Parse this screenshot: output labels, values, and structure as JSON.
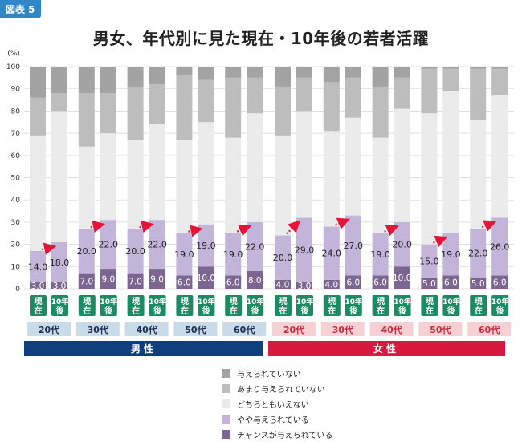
{
  "figure_label": "図表 5",
  "title": "男女、年代別に見た現在・10年後の若者活躍",
  "chart_data": {
    "type": "bar",
    "stacked": true,
    "title": "男女、年代別に見た現在・10年後の若者活躍",
    "ylabel": "(%)",
    "ylim": [
      0,
      100
    ],
    "yticks": [
      0,
      10,
      20,
      30,
      40,
      50,
      60,
      70,
      80,
      90,
      100
    ],
    "time_labels": [
      "現在",
      "10年後"
    ],
    "groups": [
      {
        "gender": "男性",
        "age": "20代"
      },
      {
        "gender": "男性",
        "age": "30代"
      },
      {
        "gender": "男性",
        "age": "40代"
      },
      {
        "gender": "男性",
        "age": "50代"
      },
      {
        "gender": "男性",
        "age": "60代"
      },
      {
        "gender": "女性",
        "age": "20代"
      },
      {
        "gender": "女性",
        "age": "30代"
      },
      {
        "gender": "女性",
        "age": "40代"
      },
      {
        "gender": "女性",
        "age": "50代"
      },
      {
        "gender": "女性",
        "age": "60代"
      }
    ],
    "gender_labels": [
      "男性",
      "女性"
    ],
    "series": [
      {
        "name": "チャンスが与えられている",
        "color": "#7a6691",
        "values": [
          3,
          3,
          7,
          9,
          7,
          9,
          6,
          10,
          6,
          8,
          4,
          3,
          4,
          6,
          6,
          10,
          5,
          6,
          5,
          6
        ]
      },
      {
        "name": "やや与えられている",
        "color": "#c3b5da",
        "values": [
          14,
          18,
          20,
          22,
          20,
          22,
          19,
          19,
          19,
          22,
          20,
          29,
          24,
          27,
          19,
          20,
          15,
          19,
          22,
          26
        ]
      },
      {
        "name": "どちらともいえない",
        "color": "#ebebeb",
        "values": [
          52,
          59,
          37,
          39,
          40,
          43,
          42,
          46,
          43,
          49,
          45,
          48,
          43,
          44,
          43,
          51,
          59,
          64,
          49,
          55
        ]
      },
      {
        "name": "あまり与えられていない",
        "color": "#bdbdbd",
        "values": [
          17,
          8,
          24,
          18,
          24,
          18,
          29,
          19,
          27,
          16,
          22,
          15,
          22,
          18,
          23,
          14,
          20,
          10,
          23,
          12
        ]
      },
      {
        "name": "与えられていない",
        "color": "#a3a3a3",
        "values": [
          14,
          12,
          12,
          12,
          9,
          8,
          4,
          6,
          5,
          5,
          9,
          5,
          7,
          5,
          9,
          5,
          1,
          1,
          1,
          1
        ]
      }
    ],
    "value_labels_series": [
      "チャンスが与えられている",
      "やや与えられている"
    ],
    "legend_order": [
      "与えられていない",
      "あまり与えられていない",
      "どちらともいえない",
      "やや与えられている",
      "チャンスが与えられている"
    ],
    "colors": {
      "male_band": "#0f3f7f",
      "female_band": "#d7193f",
      "male_age_bg": "#c9dbe8",
      "female_age_bg": "#f6d0d3",
      "male_age_text": "#1d2f52",
      "female_age_text": "#c92a3d",
      "time_badge": "#1e8a64",
      "arrow": "#e5153a"
    }
  }
}
